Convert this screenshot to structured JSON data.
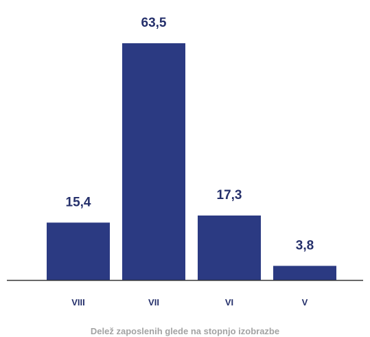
{
  "chart_data": {
    "type": "bar",
    "categories": [
      "VIII",
      "VII",
      "VI",
      "V"
    ],
    "values": [
      15.4,
      63.5,
      17.3,
      3.8
    ],
    "value_labels": [
      "15,4",
      "63,5",
      "17,3",
      "3,8"
    ],
    "xlabel": "Delež zaposlenih glede na stopnjo izobrazbe",
    "ylim": [
      0,
      63.5
    ],
    "grid": false,
    "colors": {
      "bar": "#2b3a82",
      "label": "#25306b",
      "axis": "#333333",
      "caption": "#a3a3a3"
    }
  }
}
